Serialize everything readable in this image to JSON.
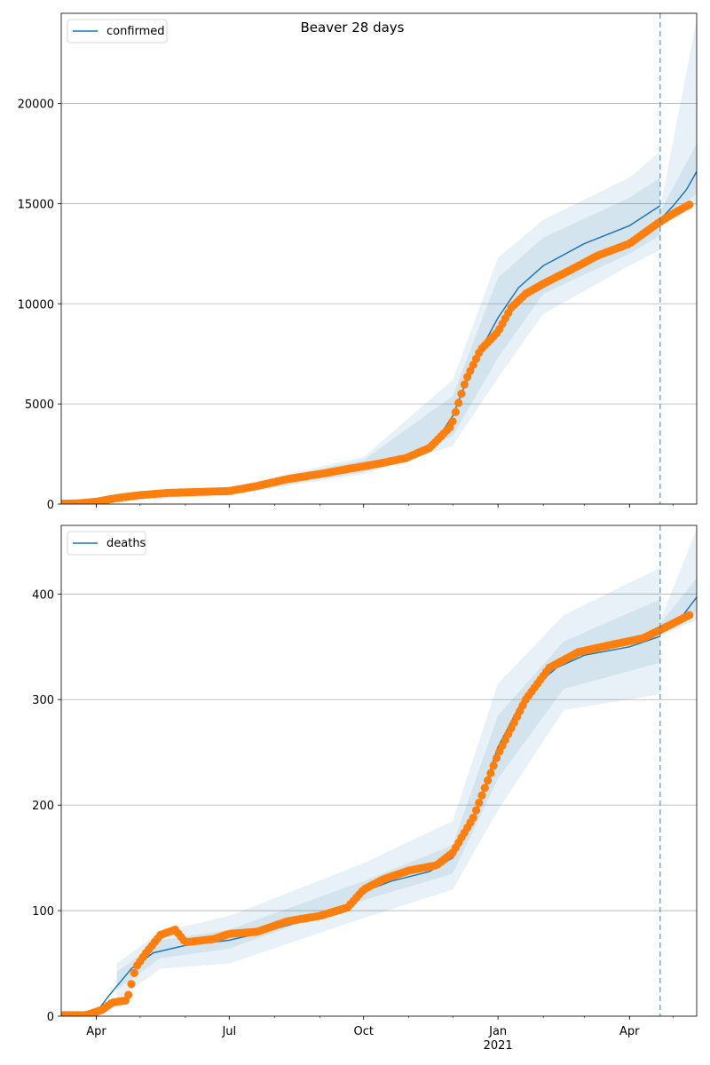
{
  "chart_data": [
    {
      "type": "line",
      "title": "Beaver 28 days",
      "legend": {
        "placement": "top-left",
        "entries": [
          "confirmed"
        ]
      },
      "grid": "y",
      "x_range": [
        "2020-03-08",
        "2021-05-17"
      ],
      "x_ticks": [
        {
          "date": "2020-04-01",
          "label": "Apr"
        },
        {
          "date": "2020-07-01",
          "label": "Jul"
        },
        {
          "date": "2020-10-01",
          "label": "Oct"
        },
        {
          "date": "2021-01-01",
          "label": "Jan"
        },
        {
          "date": "2021-04-01",
          "label": "Apr"
        }
      ],
      "ylim": [
        0,
        24500
      ],
      "y_ticks": [
        0,
        5000,
        10000,
        15000,
        20000
      ],
      "forecast_start": "2021-04-22",
      "colors": {
        "model": "#1f77b4",
        "observed": "#ff7f0e",
        "band": "#1f77b4"
      },
      "series": [
        {
          "name": "confirmed",
          "kind": "line",
          "points": [
            [
              "2020-03-08",
              20
            ],
            [
              "2020-03-25",
              60
            ],
            [
              "2020-04-10",
              250
            ],
            [
              "2020-05-01",
              420
            ],
            [
              "2020-06-01",
              560
            ],
            [
              "2020-07-01",
              650
            ],
            [
              "2020-08-01",
              1100
            ],
            [
              "2020-09-01",
              1550
            ],
            [
              "2020-10-01",
              1900
            ],
            [
              "2020-11-01",
              2400
            ],
            [
              "2020-11-20",
              3200
            ],
            [
              "2020-12-01",
              4400
            ],
            [
              "2020-12-15",
              7000
            ],
            [
              "2021-01-01",
              9300
            ],
            [
              "2021-01-15",
              10800
            ],
            [
              "2021-02-01",
              11900
            ],
            [
              "2021-03-01",
              13000
            ],
            [
              "2021-04-01",
              13900
            ],
            [
              "2021-04-22",
              14900
            ]
          ]
        },
        {
          "name": "forecast",
          "kind": "line",
          "points": [
            [
              "2021-04-22",
              14200
            ],
            [
              "2021-05-01",
              14900
            ],
            [
              "2021-05-10",
              15700
            ],
            [
              "2021-05-17",
              16600
            ]
          ]
        },
        {
          "name": "observed",
          "kind": "scatter",
          "points": [
            [
              "2020-03-08",
              20
            ],
            [
              "2020-03-20",
              40
            ],
            [
              "2020-04-01",
              120
            ],
            [
              "2020-04-15",
              300
            ],
            [
              "2020-05-01",
              450
            ],
            [
              "2020-05-20",
              560
            ],
            [
              "2020-06-15",
              620
            ],
            [
              "2020-07-01",
              650
            ],
            [
              "2020-07-20",
              900
            ],
            [
              "2020-08-10",
              1250
            ],
            [
              "2020-09-01",
              1500
            ],
            [
              "2020-09-20",
              1750
            ],
            [
              "2020-10-10",
              2000
            ],
            [
              "2020-10-30",
              2300
            ],
            [
              "2020-11-15",
              2800
            ],
            [
              "2020-11-30",
              3900
            ],
            [
              "2020-12-10",
              6200
            ],
            [
              "2020-12-20",
              7700
            ],
            [
              "2021-01-01",
              8600
            ],
            [
              "2021-01-10",
              9800
            ],
            [
              "2021-01-20",
              10500
            ],
            [
              "2021-02-01",
              11000
            ],
            [
              "2021-02-20",
              11700
            ],
            [
              "2021-03-10",
              12400
            ],
            [
              "2021-04-01",
              13000
            ],
            [
              "2021-04-20",
              14000
            ],
            [
              "2021-05-01",
              14500
            ],
            [
              "2021-05-12",
              14950
            ]
          ]
        }
      ],
      "uncertainty_bands": [
        {
          "points": [
            [
              "2020-04-15",
              200,
              500
            ],
            [
              "2020-07-01",
              500,
              800
            ],
            [
              "2020-10-01",
              1600,
              2200
            ],
            [
              "2020-12-01",
              3400,
              5400
            ],
            [
              "2021-01-01",
              7300,
              11300
            ],
            [
              "2021-02-01",
              10500,
              13300
            ],
            [
              "2021-04-01",
              12500,
              15300
            ],
            [
              "2021-04-22",
              13400,
              16300
            ]
          ],
          "after_forecast": [
            [
              "2021-04-22",
              14000,
              14600
            ],
            [
              "2021-05-17",
              15500,
              18000
            ]
          ]
        },
        {
          "points": [
            [
              "2020-04-15",
              150,
              550
            ],
            [
              "2020-07-01",
              450,
              850
            ],
            [
              "2020-10-01",
              1500,
              2350
            ],
            [
              "2020-12-01",
              2900,
              6200
            ],
            [
              "2021-01-01",
              6300,
              12300
            ],
            [
              "2021-02-01",
              9500,
              14200
            ],
            [
              "2021-04-01",
              11900,
              16300
            ],
            [
              "2021-04-22",
              12700,
              17600
            ]
          ],
          "after_forecast": [
            [
              "2021-04-22",
              13900,
              14800
            ],
            [
              "2021-05-17",
              15000,
              24200
            ]
          ]
        }
      ]
    },
    {
      "type": "line",
      "legend": {
        "placement": "top-left",
        "entries": [
          "deaths"
        ]
      },
      "grid": "y",
      "x_range": [
        "2020-03-08",
        "2021-05-17"
      ],
      "x_ticks": [
        {
          "date": "2020-04-01",
          "label": "Apr"
        },
        {
          "date": "2020-07-01",
          "label": "Jul"
        },
        {
          "date": "2020-10-01",
          "label": "Oct"
        },
        {
          "date": "2021-01-01",
          "label": "Jan"
        },
        {
          "date": "2021-04-01",
          "label": "Apr"
        }
      ],
      "x_year_label": {
        "date": "2021-01-01",
        "label": "2021"
      },
      "ylim": [
        0,
        465
      ],
      "y_ticks": [
        0,
        100,
        200,
        300,
        400
      ],
      "forecast_start": "2021-04-22",
      "colors": {
        "model": "#1f77b4",
        "observed": "#ff7f0e",
        "band": "#1f77b4"
      },
      "series": [
        {
          "name": "deaths",
          "kind": "line",
          "points": [
            [
              "2020-03-08",
              0
            ],
            [
              "2020-03-30",
              0
            ],
            [
              "2020-04-10",
              20
            ],
            [
              "2020-04-25",
              45
            ],
            [
              "2020-05-10",
              60
            ],
            [
              "2020-06-01",
              67
            ],
            [
              "2020-07-01",
              72
            ],
            [
              "2020-07-20",
              78
            ],
            [
              "2020-08-15",
              88
            ],
            [
              "2020-09-15",
              100
            ],
            [
              "2020-10-01",
              118
            ],
            [
              "2020-10-20",
              128
            ],
            [
              "2020-11-15",
              137
            ],
            [
              "2020-12-01",
              150
            ],
            [
              "2020-12-15",
              185
            ],
            [
              "2021-01-01",
              255
            ],
            [
              "2021-01-20",
              305
            ],
            [
              "2021-02-10",
              330
            ],
            [
              "2021-03-01",
              342
            ],
            [
              "2021-04-01",
              350
            ],
            [
              "2021-04-22",
              360
            ]
          ]
        },
        {
          "name": "forecast",
          "kind": "line",
          "points": [
            [
              "2021-04-22",
              366
            ],
            [
              "2021-05-05",
              375
            ],
            [
              "2021-05-17",
              397
            ]
          ]
        },
        {
          "name": "observed",
          "kind": "scatter",
          "points": [
            [
              "2020-03-08",
              1
            ],
            [
              "2020-03-25",
              1
            ],
            [
              "2020-04-05",
              6
            ],
            [
              "2020-04-12",
              13
            ],
            [
              "2020-04-22",
              15
            ],
            [
              "2020-04-28",
              46
            ],
            [
              "2020-05-05",
              60
            ],
            [
              "2020-05-15",
              77
            ],
            [
              "2020-05-25",
              82
            ],
            [
              "2020-06-01",
              70
            ],
            [
              "2020-06-20",
              73
            ],
            [
              "2020-07-01",
              78
            ],
            [
              "2020-07-20",
              80
            ],
            [
              "2020-08-10",
              90
            ],
            [
              "2020-09-01",
              95
            ],
            [
              "2020-09-20",
              103
            ],
            [
              "2020-10-01",
              120
            ],
            [
              "2020-10-15",
              130
            ],
            [
              "2020-11-01",
              138
            ],
            [
              "2020-11-20",
              143
            ],
            [
              "2020-12-01",
              155
            ],
            [
              "2020-12-15",
              188
            ],
            [
              "2021-01-01",
              248
            ],
            [
              "2021-01-20",
              300
            ],
            [
              "2021-02-05",
              330
            ],
            [
              "2021-02-25",
              345
            ],
            [
              "2021-03-20",
              352
            ],
            [
              "2021-04-10",
              358
            ],
            [
              "2021-04-25",
              368
            ],
            [
              "2021-05-12",
              380
            ]
          ]
        }
      ],
      "uncertainty_bands": [
        {
          "points": [
            [
              "2020-04-15",
              25,
              42
            ],
            [
              "2020-05-15",
              55,
              72
            ],
            [
              "2020-07-01",
              64,
              82
            ],
            [
              "2020-10-01",
              110,
              128
            ],
            [
              "2020-12-01",
              135,
              162
            ],
            [
              "2021-01-01",
              225,
              285
            ],
            [
              "2021-02-15",
              310,
              355
            ],
            [
              "2021-04-22",
              335,
              395
            ]
          ],
          "after_forecast": [
            [
              "2021-04-22",
              362,
              372
            ],
            [
              "2021-05-17",
              383,
              415
            ]
          ]
        },
        {
          "points": [
            [
              "2020-04-15",
              15,
              50
            ],
            [
              "2020-05-15",
              45,
              80
            ],
            [
              "2020-07-01",
              50,
              95
            ],
            [
              "2020-10-01",
              93,
              145
            ],
            [
              "2020-12-01",
              120,
              185
            ],
            [
              "2021-01-01",
              195,
              315
            ],
            [
              "2021-02-15",
              290,
              380
            ],
            [
              "2021-04-22",
              305,
              425
            ]
          ],
          "after_forecast": [
            [
              "2021-04-22",
              360,
              375
            ],
            [
              "2021-05-17",
              375,
              462
            ]
          ]
        }
      ]
    }
  ]
}
